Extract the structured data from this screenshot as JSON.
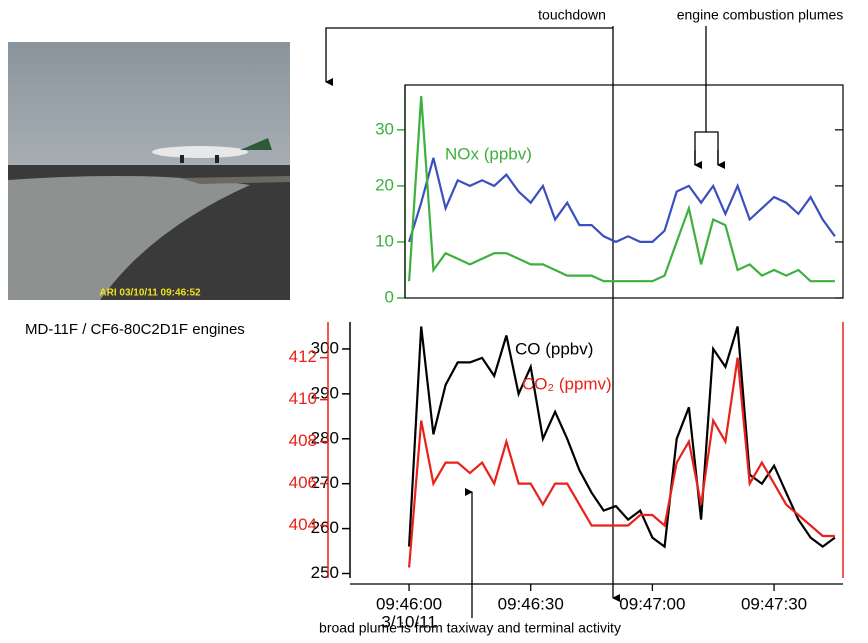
{
  "figure": {
    "photo_stamp": "ARI 03/10/11 09:46:52",
    "photo_caption": "MD-11F / CF6-80C2D1F engines",
    "touchdown": "touchdown",
    "plumes": "engine combustion plumes",
    "broad": "broad plume is from taxiway and terminal activity"
  },
  "chart_data": [
    {
      "type": "line",
      "x": [
        "09:46:00",
        "09:46:03",
        "09:46:06",
        "09:46:09",
        "09:46:12",
        "09:46:15",
        "09:46:18",
        "09:46:21",
        "09:46:24",
        "09:46:27",
        "09:46:30",
        "09:46:33",
        "09:46:36",
        "09:46:39",
        "09:46:42",
        "09:46:45",
        "09:46:48",
        "09:46:51",
        "09:46:54",
        "09:46:57",
        "09:47:00",
        "09:47:03",
        "09:47:06",
        "09:47:09",
        "09:47:12",
        "09:47:15",
        "09:47:18",
        "09:47:21",
        "09:47:24",
        "09:47:27",
        "09:47:30",
        "09:47:33",
        "09:47:36",
        "09:47:39",
        "09:47:42",
        "09:47:45"
      ],
      "xlim": [
        "09:45:59",
        "09:47:47"
      ],
      "ylim": [
        0,
        38
      ],
      "yticks": [
        0,
        10,
        20,
        30
      ],
      "series": [
        {
          "color": "#3a50c0",
          "values": [
            10,
            17,
            25,
            16,
            21,
            20,
            21,
            20,
            22,
            19,
            17,
            20,
            14,
            17,
            13,
            13,
            11,
            10,
            11,
            10,
            10,
            12,
            19,
            20,
            17,
            20,
            15,
            20,
            14,
            16,
            18,
            17,
            15,
            18,
            14,
            11
          ]
        },
        {
          "name": "NOx (ppbv)",
          "color": "#3db03d",
          "values": [
            3,
            36,
            5,
            8,
            7,
            6,
            7,
            8,
            8,
            7,
            6,
            6,
            5,
            4,
            4,
            4,
            3,
            3,
            3,
            3,
            3,
            4,
            10,
            16,
            6,
            14,
            13,
            5,
            6,
            4,
            5,
            4,
            5,
            3,
            3,
            3
          ]
        }
      ]
    },
    {
      "type": "line",
      "x": [
        "09:46:00",
        "09:46:03",
        "09:46:06",
        "09:46:09",
        "09:46:12",
        "09:46:15",
        "09:46:18",
        "09:46:21",
        "09:46:24",
        "09:46:27",
        "09:46:30",
        "09:46:33",
        "09:46:36",
        "09:46:39",
        "09:46:42",
        "09:46:45",
        "09:46:48",
        "09:46:51",
        "09:46:54",
        "09:46:57",
        "09:47:00",
        "09:47:03",
        "09:47:06",
        "09:47:09",
        "09:47:12",
        "09:47:15",
        "09:47:18",
        "09:47:21",
        "09:47:24",
        "09:47:27",
        "09:47:30",
        "09:47:33",
        "09:47:36",
        "09:47:39",
        "09:47:42",
        "09:47:45"
      ],
      "xlim": [
        "09:45:59",
        "09:47:47"
      ],
      "xticks": [
        "09:46:00",
        "09:46:30",
        "09:47:00",
        "09:47:30"
      ],
      "date_label": "3/10/11",
      "ylim": [
        249,
        306
      ],
      "yticks": [
        250,
        260,
        270,
        280,
        290,
        300
      ],
      "y2lim": [
        401.5,
        413.7
      ],
      "y2ticks": [
        404,
        406,
        408,
        410,
        412
      ],
      "series": [
        {
          "name": "CO (ppbv)",
          "color": "#000000",
          "values": [
            256,
            305,
            281,
            292,
            297,
            297,
            298,
            294,
            303,
            290,
            296,
            280,
            286,
            280,
            273,
            268,
            264,
            265,
            262,
            264,
            258,
            256,
            280,
            287,
            262,
            300,
            296,
            305,
            272,
            270,
            274,
            268,
            262,
            258,
            256,
            258
          ]
        },
        {
          "name": "CO₂ (ppmv)",
          "color": "#e8221b",
          "axis": "y2",
          "values": [
            402,
            409,
            406,
            407,
            407,
            406.5,
            407,
            406,
            408,
            406,
            406,
            405,
            406,
            406,
            405,
            404,
            404,
            404,
            404,
            404.5,
            404.5,
            404,
            407,
            408,
            405,
            409,
            408,
            412,
            406,
            407,
            406,
            405,
            404.5,
            404,
            403.5,
            403.5
          ]
        }
      ]
    }
  ]
}
